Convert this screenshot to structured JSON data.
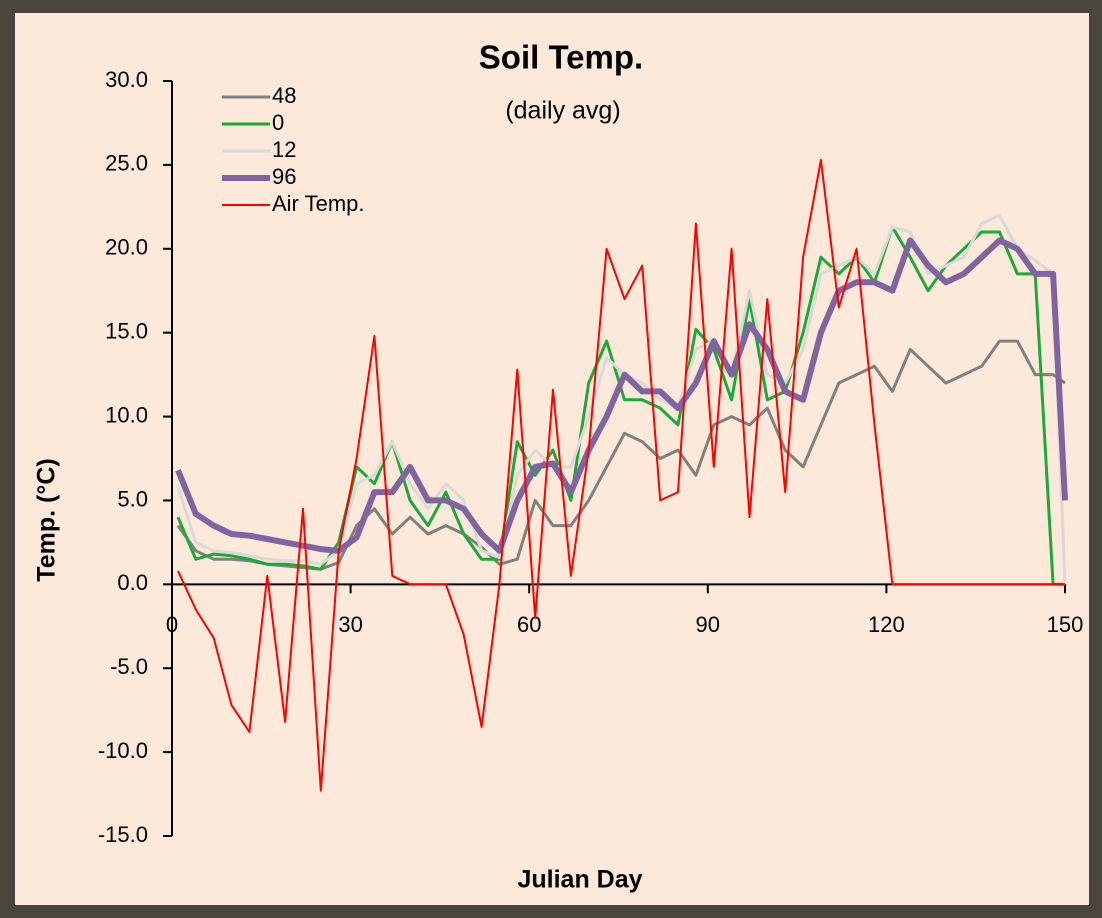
{
  "chart_data": {
    "type": "line",
    "title": "Soil Temp.",
    "subtitle": "(daily avg)",
    "x_label": "Julian Day",
    "y_label": "Temp. (°C)",
    "x": [
      1,
      4,
      7,
      10,
      13,
      16,
      19,
      22,
      25,
      28,
      31,
      34,
      37,
      40,
      43,
      46,
      49,
      52,
      55,
      58,
      61,
      64,
      67,
      70,
      73,
      76,
      79,
      82,
      85,
      88,
      91,
      94,
      97,
      100,
      103,
      106,
      109,
      112,
      115,
      118,
      121,
      124,
      127,
      130,
      133,
      136,
      139,
      142,
      145,
      148,
      150
    ],
    "xlim": [
      0,
      150
    ],
    "xticks": [
      0,
      30,
      60,
      90,
      120,
      150
    ],
    "ylim": [
      -15,
      30
    ],
    "yticks": [
      {
        "value": -15,
        "label": "-15.0"
      },
      {
        "value": -10,
        "label": "-10.0"
      },
      {
        "value": -5,
        "label": "-5.0"
      },
      {
        "value": 0,
        "label": "0.0"
      },
      {
        "value": 5,
        "label": "5.0"
      },
      {
        "value": 10,
        "label": "10.0"
      },
      {
        "value": 15,
        "label": "15.0"
      },
      {
        "value": 20,
        "label": "20.0"
      },
      {
        "value": 25,
        "label": "25.0"
      },
      {
        "value": 30,
        "label": "30.0"
      }
    ],
    "grid": false,
    "legend": "top-left",
    "series": [
      {
        "name": "48",
        "color": "#808080",
        "width": 3,
        "values": [
          3.5,
          2,
          1.5,
          1.5,
          1.4,
          1.2,
          1.1,
          1,
          0.9,
          1.3,
          3.5,
          4.5,
          3,
          4,
          3,
          3.5,
          3,
          2.2,
          1.2,
          1.5,
          5,
          3.5,
          3.5,
          5,
          7,
          9,
          8.5,
          7.5,
          8,
          6.5,
          9.5,
          10,
          9.5,
          10.5,
          8,
          7,
          9.5,
          12,
          12.5,
          13,
          11.5,
          14,
          13,
          12,
          12.5,
          13,
          14.5,
          14.5,
          12.5,
          12.5,
          12
        ]
      },
      {
        "name": "0",
        "color": "#1aaa3a",
        "width": 3,
        "values": [
          4,
          1.5,
          1.8,
          1.7,
          1.5,
          1.2,
          1.2,
          1.1,
          0.9,
          2.5,
          7,
          6,
          8.5,
          5,
          3.5,
          5.5,
          3,
          1.5,
          1.5,
          8.5,
          6.5,
          8,
          5,
          12,
          14.5,
          11,
          11,
          10.5,
          9.5,
          15.2,
          14,
          11,
          17,
          11,
          11.5,
          15,
          19.5,
          18.5,
          19.5,
          18,
          21.3,
          19.5,
          17.5,
          19,
          20,
          21,
          21,
          18.5,
          18.5,
          0,
          0
        ]
      },
      {
        "name": "12",
        "color": "#d9d9d9",
        "width": 3,
        "values": [
          5.8,
          2.5,
          2,
          1.9,
          1.7,
          1.5,
          1.4,
          1.4,
          1.2,
          2,
          6,
          6.5,
          8.5,
          6,
          4.5,
          6,
          5,
          2,
          1.6,
          6.5,
          8,
          7,
          7,
          10,
          13.5,
          12.5,
          12,
          11,
          10.5,
          14,
          14.5,
          12.5,
          17.5,
          12.5,
          12,
          14,
          18.5,
          19,
          19.5,
          18.5,
          21.3,
          21,
          18.5,
          19,
          19.5,
          21.5,
          22,
          20,
          19.3,
          18.5,
          0
        ]
      },
      {
        "name": "96",
        "color": "#8064a2",
        "width": 6,
        "values": [
          6.8,
          4.2,
          3.5,
          3,
          2.9,
          2.7,
          2.5,
          2.3,
          2.1,
          2,
          2.8,
          5.5,
          5.5,
          7,
          5,
          5,
          4.5,
          3,
          2,
          5,
          7,
          7.2,
          5.5,
          8,
          10,
          12.5,
          11.5,
          11.5,
          10.5,
          12,
          14.5,
          12.5,
          15.5,
          14,
          11.5,
          11,
          15,
          17.5,
          18,
          18,
          17.5,
          20.5,
          19,
          18,
          18.5,
          19.5,
          20.5,
          20,
          18.5,
          18.5,
          5
        ]
      },
      {
        "name": "Air Temp.",
        "color": "#ff0000",
        "width": 2,
        "values": [
          0.8,
          -1.5,
          -3.2,
          -7.2,
          -8.8,
          0.5,
          -8.2,
          4.5,
          -12.3,
          2,
          7.5,
          14.8,
          0.5,
          0,
          0,
          0,
          -3,
          -8.5,
          0,
          12.8,
          -2,
          11.6,
          0.5,
          8,
          20,
          17,
          19,
          5,
          5.5,
          21.5,
          7,
          20,
          4,
          17,
          5.5,
          19.5,
          25.3,
          16.5,
          20,
          9.5,
          0,
          0,
          0,
          0,
          0,
          0,
          0,
          0,
          0,
          0,
          0
        ]
      }
    ]
  }
}
